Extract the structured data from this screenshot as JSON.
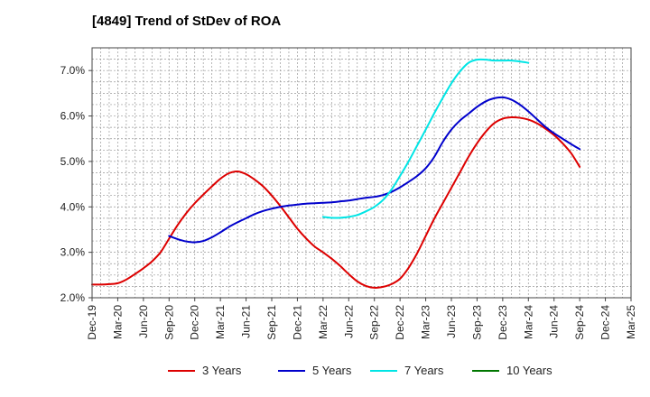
{
  "chart_data": {
    "type": "line",
    "title": "[4849]  Trend of StDev of ROA",
    "xlabel": "",
    "ylabel": "",
    "ylim": [
      2.0,
      7.5
    ],
    "yticks": [
      "2.0%",
      "3.0%",
      "4.0%",
      "5.0%",
      "6.0%",
      "7.0%"
    ],
    "ytick_values": [
      2.0,
      3.0,
      4.0,
      5.0,
      6.0,
      7.0
    ],
    "xticks": [
      "Dec-19",
      "Mar-20",
      "Jun-20",
      "Sep-20",
      "Dec-20",
      "Mar-21",
      "Jun-21",
      "Sep-21",
      "Dec-21",
      "Mar-22",
      "Jun-22",
      "Sep-22",
      "Dec-22",
      "Mar-23",
      "Jun-23",
      "Sep-23",
      "Dec-23",
      "Mar-24",
      "Jun-24",
      "Sep-24",
      "Dec-24",
      "Mar-25"
    ],
    "grid": true,
    "legend_position": "bottom",
    "series": [
      {
        "name": "3 Years",
        "color": "#dd0000",
        "start_index": 0,
        "values": [
          2.29,
          2.29,
          2.3,
          2.32,
          2.4,
          2.52,
          2.65,
          2.8,
          3.0,
          3.3,
          3.6,
          3.86,
          4.08,
          4.27,
          4.45,
          4.62,
          4.74,
          4.78,
          4.72,
          4.6,
          4.45,
          4.25,
          4.02,
          3.77,
          3.52,
          3.31,
          3.13,
          3.0,
          2.86,
          2.7,
          2.52,
          2.36,
          2.26,
          2.22,
          2.24,
          2.3,
          2.42,
          2.66,
          2.98,
          3.36,
          3.74,
          4.08,
          4.42,
          4.76,
          5.1,
          5.4,
          5.65,
          5.84,
          5.94,
          5.97,
          5.96,
          5.92,
          5.84,
          5.72,
          5.58,
          5.4,
          5.18,
          4.88
        ]
      },
      {
        "name": "5 Years",
        "color": "#0000cc",
        "start_index": 9,
        "values": [
          3.36,
          3.29,
          3.24,
          3.22,
          3.25,
          3.33,
          3.44,
          3.56,
          3.66,
          3.75,
          3.84,
          3.91,
          3.96,
          4.0,
          4.03,
          4.05,
          4.07,
          4.08,
          4.09,
          4.1,
          4.12,
          4.14,
          4.17,
          4.2,
          4.22,
          4.26,
          4.33,
          4.43,
          4.55,
          4.68,
          4.85,
          5.1,
          5.43,
          5.7,
          5.9,
          6.05,
          6.2,
          6.32,
          6.39,
          6.41,
          6.36,
          6.25,
          6.1,
          5.93,
          5.76,
          5.62,
          5.5,
          5.38,
          5.27
        ]
      },
      {
        "name": "7 Years",
        "color": "#00e5e5",
        "start_index": 27,
        "values": [
          3.78,
          3.76,
          3.76,
          3.78,
          3.82,
          3.9,
          4.0,
          4.15,
          4.38,
          4.68,
          5.0,
          5.35,
          5.7,
          6.06,
          6.4,
          6.72,
          6.98,
          7.17,
          7.24,
          7.24,
          7.22,
          7.22,
          7.22,
          7.2,
          7.17
        ]
      },
      {
        "name": "10 Years",
        "color": "#007700",
        "start_index": 0,
        "values": []
      }
    ]
  }
}
